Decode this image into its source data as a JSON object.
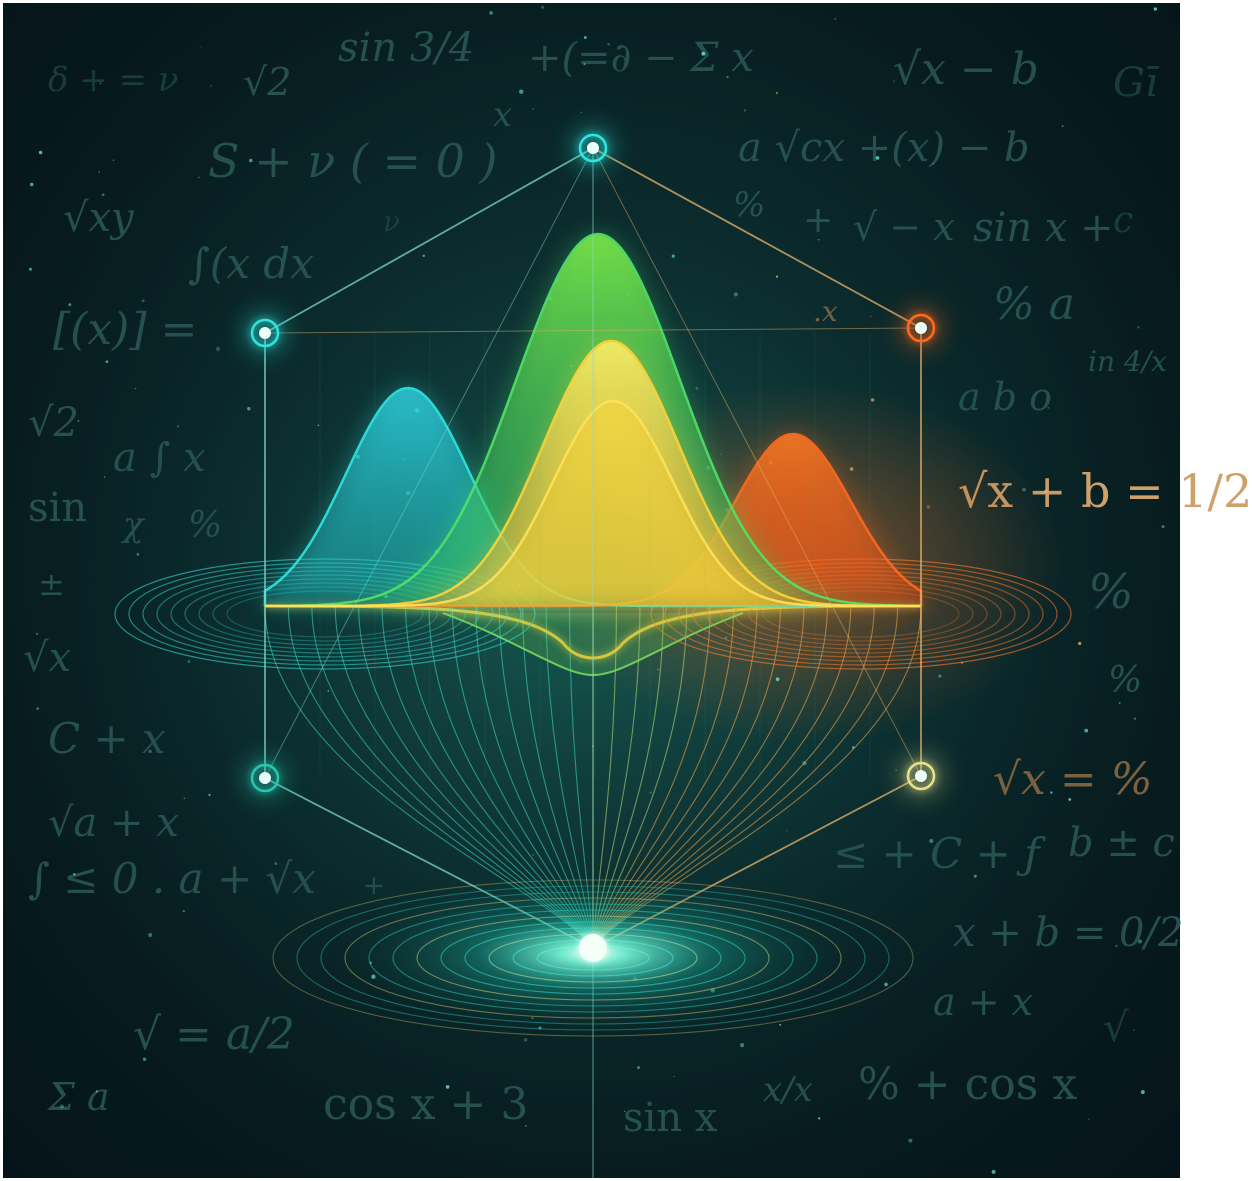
{
  "scene": {
    "equations": [
      "δ + = ν",
      "√2",
      "sin 3/4",
      "+(=∂ − Σ x",
      "x",
      "√x − b",
      "Gī",
      "S + ν ( = 0 )",
      "a √cx +(x) − b",
      "√xy",
      "∫(x dx",
      "ν",
      "%",
      "+",
      "√ − x",
      "sin x +",
      "c",
      "[(x)] =",
      "% a",
      ".x",
      "in 4/x",
      "√2",
      "a ∫ x",
      "a b o",
      "sin",
      "χ",
      "%",
      "√x + b = 1/2",
      "±",
      "%",
      "√x",
      "%",
      "C + x",
      "√x = %",
      "√a + x",
      "b ± c",
      "≤ + C + ƒ",
      "∫ ≤ 0 . a + √x",
      "+",
      "x + b = 0/2",
      "a + x",
      "√ = a/2",
      "√",
      "Σ a",
      "cos x + 3",
      "sin x",
      "x/x",
      "% + cos x"
    ],
    "colors": {
      "background": "#071c1f",
      "cyan": "#2fe6e0",
      "teal": "#27c7b0",
      "green": "#4fe36a",
      "yellow": "#ffd43a",
      "orange": "#ff6a1e",
      "focus": "#eafff8"
    }
  }
}
